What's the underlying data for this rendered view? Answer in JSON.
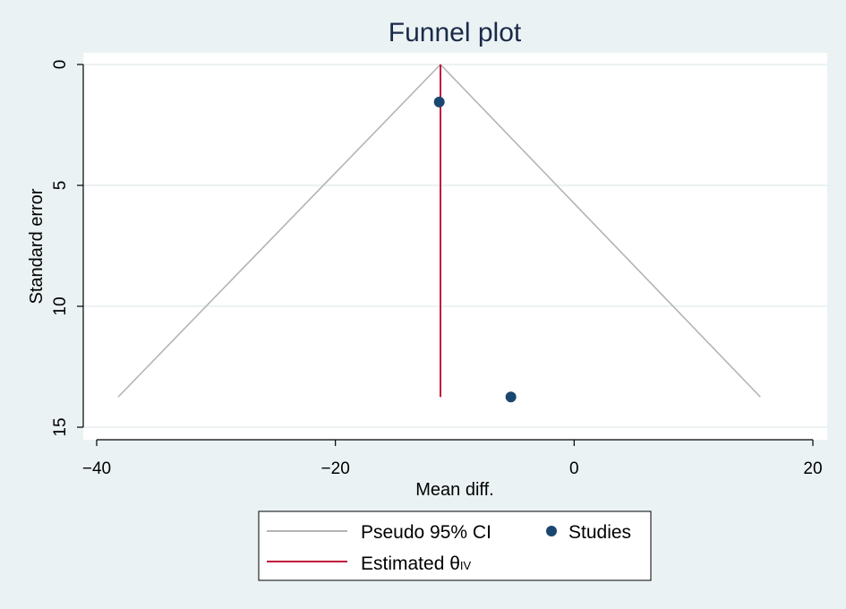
{
  "chart_data": {
    "type": "scatter",
    "title": "Funnel plot",
    "xlabel": "Mean diff.",
    "ylabel": "Standard error",
    "xlim": [
      -41,
      21
    ],
    "ylim": [
      0,
      15.5
    ],
    "y_inverted": true,
    "x_ticks": [
      -40,
      -20,
      0,
      20
    ],
    "x_tick_labels": [
      "−40",
      "−20",
      "0",
      "20"
    ],
    "y_ticks": [
      0,
      5,
      10,
      15
    ],
    "y_tick_labels": [
      "0",
      "5",
      "10",
      "15"
    ],
    "grid": "horizontal",
    "estimate": -11.2,
    "pseudo_ci": {
      "name": "Pseudo 95% CI",
      "apex": [
        -11.2,
        0
      ],
      "left_base": [
        -38.2,
        13.75
      ],
      "right_base": [
        15.6,
        13.75
      ]
    },
    "estimated_line": {
      "name_main": "Estimated θ",
      "name_sub": "IV",
      "x": -11.2,
      "y_range": [
        0,
        13.75
      ]
    },
    "series": [
      {
        "name": "Studies",
        "points": [
          {
            "x": -11.3,
            "y": 1.55
          },
          {
            "x": -5.3,
            "y": 13.75
          }
        ]
      }
    ],
    "legend": "bottom",
    "colors": {
      "background": "#eaf2f3",
      "plot_background": "#ffffff",
      "ci_line": "#b4b4b4",
      "estimate_line": "#c0143c",
      "points": "#1a4770",
      "grid": "#e1eaea"
    }
  }
}
